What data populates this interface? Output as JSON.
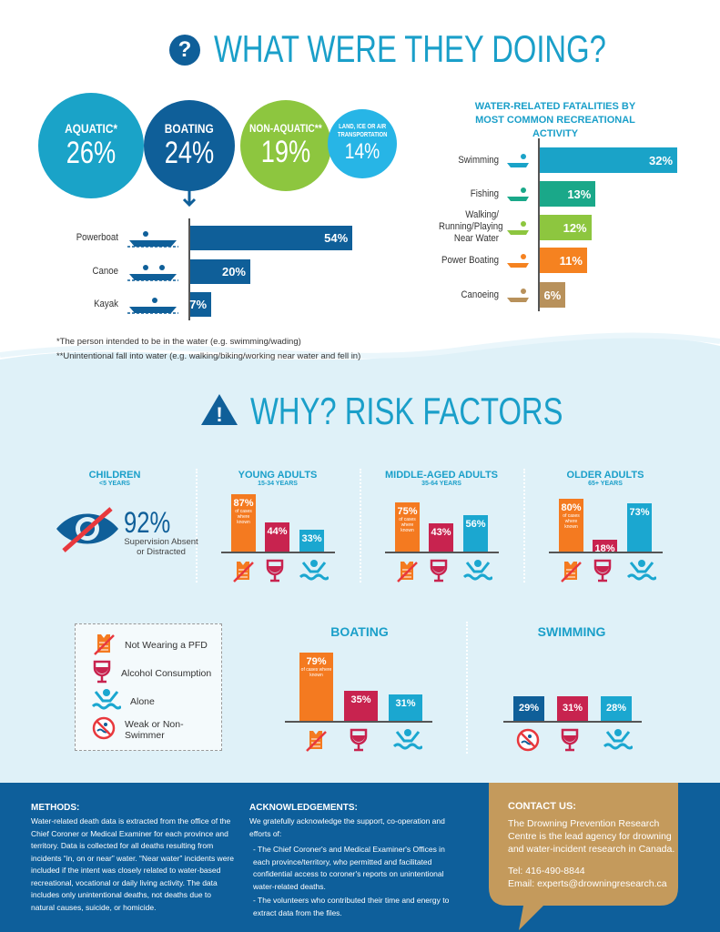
{
  "section1": {
    "title": "WHAT WERE THEY DOING?",
    "icon": "question-circle-icon",
    "categories": [
      {
        "label": "AQUATIC*",
        "value": "26%",
        "color": "#1aa3c8"
      },
      {
        "label": "BOATING",
        "value": "24%",
        "color": "#0f5f99"
      },
      {
        "label": "NON-AQUATIC**",
        "value": "19%",
        "color": "#8dc63f"
      },
      {
        "label": "LAND, ICE OR AIR TRANSPORTATION",
        "value": "14%",
        "color": "#27b5e6"
      }
    ],
    "footnotes": [
      "*The person intended to be in the water (e.g. swimming/wading)",
      "**Unintentional fall into water (e.g. walking/biking/working near water and fell in)"
    ]
  },
  "chart_data": [
    {
      "type": "bar",
      "orientation": "horizontal",
      "title": "",
      "categories": [
        "Powerboat",
        "Canoe",
        "Kayak"
      ],
      "values": [
        54,
        20,
        7
      ],
      "labels": [
        "54%",
        "20%",
        "7%"
      ],
      "color": "#0f5f99"
    },
    {
      "type": "bar",
      "orientation": "horizontal",
      "title": "WATER-RELATED FATALITIES BY MOST COMMON RECREATIONAL ACTIVITY",
      "categories": [
        "Swimming",
        "Fishing",
        "Walking/ Running/Playing Near Water",
        "Power Boating",
        "Canoeing"
      ],
      "values": [
        32,
        13,
        12,
        11,
        6
      ],
      "labels": [
        "32%",
        "13%",
        "12%",
        "11%",
        "6%"
      ],
      "colors": [
        "#1aa3c8",
        "#1aa889",
        "#8dc63f",
        "#f58220",
        "#b8915b"
      ]
    },
    {
      "type": "bar",
      "title": "YOUNG ADULTS",
      "subtitle": "15-34 YEARS",
      "categories": [
        "Not Wearing a PFD",
        "Alcohol Consumption",
        "Alone"
      ],
      "values": [
        87,
        44,
        33
      ],
      "labels": [
        "87%",
        "44%",
        "33%"
      ],
      "note": "of cases where known"
    },
    {
      "type": "bar",
      "title": "MIDDLE-AGED ADULTS",
      "subtitle": "35-64 YEARS",
      "categories": [
        "Not Wearing a PFD",
        "Alcohol Consumption",
        "Alone"
      ],
      "values": [
        75,
        43,
        56
      ],
      "labels": [
        "75%",
        "43%",
        "56%"
      ],
      "note": "of cases where known"
    },
    {
      "type": "bar",
      "title": "OLDER ADULTS",
      "subtitle": "65+ YEARS",
      "categories": [
        "Not Wearing a PFD",
        "Alcohol Consumption",
        "Alone"
      ],
      "values": [
        80,
        18,
        73
      ],
      "labels": [
        "80%",
        "18%",
        "73%"
      ],
      "note": "of cases where known"
    },
    {
      "type": "bar",
      "title": "BOATING",
      "categories": [
        "Not Wearing a PFD",
        "Alcohol Consumption",
        "Alone"
      ],
      "values": [
        79,
        35,
        31
      ],
      "labels": [
        "79%",
        "35%",
        "31%"
      ],
      "note": "of cases where known"
    },
    {
      "type": "bar",
      "title": "SWIMMING",
      "categories": [
        "Weak or Non-Swimmer",
        "Alcohol Consumption",
        "Alone"
      ],
      "values": [
        29,
        31,
        28
      ],
      "labels": [
        "29%",
        "31%",
        "28%"
      ]
    }
  ],
  "section2": {
    "title": "WHY? RISK FACTORS",
    "icon": "warning-triangle-icon",
    "children": {
      "title": "CHILDREN",
      "subtitle": "<5 YEARS",
      "value": "92%",
      "caption": "Supervision Absent or Distracted"
    },
    "legend": [
      "Not Wearing a PFD",
      "Alcohol Consumption",
      "Alone",
      "Weak or Non-Swimmer"
    ],
    "colors": {
      "pfd": "#f47a20",
      "alcohol": "#c8234f",
      "alone": "#1ba7d0",
      "nonswimmer": "#0f5f99"
    }
  },
  "footer": {
    "methods_title": "METHODS:",
    "methods_text": "Water-related death data is extracted from the office of the Chief Coroner or Medical Examiner for each province and territory. Data is collected for all deaths resulting from incidents “in, on or near” water. “Near water” incidents were included if the intent was closely related to water-based recreational, vocational or daily living activity. The data includes only unintentional deaths, not deaths due to natural causes, suicide, or homicide.",
    "ack_title": "ACKNOWLEDGEMENTS:",
    "ack_intro": "We gratefully acknowledge the support, co-operation and efforts of:",
    "ack_items": [
      "- The Chief Coroner's and Medical Examiner's Offices in each province/territory, who permitted and facilitated confidential access to coroner's reports on unintentional water-related deaths.",
      "- The volunteers who contributed their time and energy to extract data from the files."
    ],
    "contact_title": "CONTACT US:",
    "contact_text": "The Drowning Prevention Research Centre is the lead agency for drowning and water-incident research in Canada.",
    "tel": "Tel: 416-490-8844",
    "email": "Email: experts@drowningresearch.ca"
  }
}
